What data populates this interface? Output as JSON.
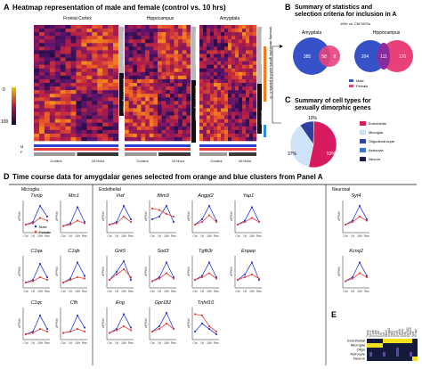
{
  "panel_a": {
    "letter": "A",
    "title": "Heatmap representation of male and female (control vs. 10 hrs)",
    "regions": [
      "Frontal Cortex",
      "Hippocampus",
      "Amygdala"
    ],
    "scale_max": "0",
    "scale_min": "100",
    "sex_labels": [
      "M",
      "F"
    ],
    "conditions": [
      "Control",
      "10 Hour"
    ],
    "cluster_labels": [
      "Increased expression",
      "decreased expression",
      "Increased expression",
      "decreased expression",
      "Increased expression",
      "decrease"
    ],
    "side_label": "sexually dimorphic genes used in panels C, D",
    "colors": {
      "male": "#2a3fd0",
      "female": "#e8413d",
      "hot": "#f2c200",
      "cold": "#1c1464"
    }
  },
  "panel_b": {
    "letter": "B",
    "title": "Summary of statistics and selection criteria for inclusion in A",
    "subtitle": "10Hr vs. Ctrl DEGs",
    "legend": [
      "Male",
      "Female"
    ],
    "venns": [
      {
        "label": "Amygdala",
        "male_only": "385",
        "overlap": "58",
        "female_only": "8"
      },
      {
        "label": "Hippocampus",
        "male_only": "204",
        "overlap": "111",
        "female_only": "170"
      }
    ]
  },
  "panel_c": {
    "letter": "C",
    "title": "Summary of cell types for sexually dimorphic genes",
    "legend": [
      "Endothelial",
      "Microglia",
      "Oligodendrocyte",
      "Astrocyte",
      "Neuron"
    ],
    "label_big": "53%",
    "label_mid": "37%",
    "label_small": "10%"
  },
  "panel_d": {
    "letter": "D",
    "title": "Time course data for amygdalar genes selected from orange and blue clusters from Panel A",
    "groups": [
      "Microglia",
      "Endothelial",
      "Neuronal"
    ],
    "y_label": "dFPKM",
    "x_ticks": [
      "Ctrl",
      "1H",
      "10H",
      "Rec"
    ],
    "legend": [
      "Male",
      "Female"
    ]
  },
  "panel_e": {
    "letter": "E",
    "rows": [
      "Endothelial",
      "Microglia",
      "Oligo",
      "Astrocyte",
      "Neuron"
    ],
    "cols": [
      "Txnip",
      "Mrc1",
      "C1qa",
      "C1qb",
      "C1qc",
      "Cfh",
      "Vwf",
      "Ifitm3",
      "Angpt2",
      "Yap1",
      "Grk5",
      "Sod3",
      "Tgfb3r",
      "Enpep",
      "Eng",
      "Gpr182",
      "Tnfsf10",
      "Syt4",
      "Kcnq2"
    ]
  },
  "chart_data": {
    "type": "line",
    "x": [
      "Ctrl",
      "1H",
      "10H",
      "Rec"
    ],
    "ylabel": "dFPKM",
    "panels": [
      {
        "gene": "Txnip",
        "group": "Microglia",
        "series": [
          {
            "name": "Male",
            "values": [
              0.2,
              0.3,
              0.9,
              0.5
            ]
          },
          {
            "name": "Female",
            "values": [
              0.2,
              0.25,
              0.45,
              0.35
            ]
          }
        ]
      },
      {
        "gene": "Mrc1",
        "group": "Microglia",
        "series": [
          {
            "name": "Male",
            "values": [
              0.15,
              0.25,
              0.85,
              0.3
            ]
          },
          {
            "name": "Female",
            "values": [
              0.15,
              0.2,
              0.35,
              0.25
            ]
          }
        ]
      },
      {
        "gene": "C1qa",
        "group": "Microglia",
        "series": [
          {
            "name": "Male",
            "values": [
              0.1,
              0.2,
              0.8,
              0.3
            ]
          },
          {
            "name": "Female",
            "values": [
              0.1,
              0.15,
              0.3,
              0.2
            ]
          }
        ]
      },
      {
        "gene": "C1qb",
        "group": "Microglia",
        "series": [
          {
            "name": "Male",
            "values": [
              0.1,
              0.25,
              0.85,
              0.35
            ]
          },
          {
            "name": "Female",
            "values": [
              0.1,
              0.2,
              0.3,
              0.25
            ]
          }
        ]
      },
      {
        "gene": "C1qc",
        "group": "Microglia",
        "series": [
          {
            "name": "Male",
            "values": [
              0.1,
              0.2,
              0.8,
              0.3
            ]
          },
          {
            "name": "Female",
            "values": [
              0.1,
              0.15,
              0.3,
              0.2
            ]
          }
        ]
      },
      {
        "gene": "Cfh",
        "group": "Microglia",
        "series": [
          {
            "name": "Male",
            "values": [
              0.15,
              0.2,
              0.8,
              0.35
            ]
          },
          {
            "name": "Female",
            "values": [
              0.15,
              0.2,
              0.3,
              0.2
            ]
          }
        ]
      },
      {
        "gene": "Vwf",
        "group": "Endothelial",
        "series": [
          {
            "name": "Male",
            "values": [
              0.2,
              0.3,
              0.9,
              0.4
            ]
          },
          {
            "name": "Female",
            "values": [
              0.2,
              0.25,
              0.5,
              0.3
            ]
          }
        ]
      },
      {
        "gene": "Ifitm3",
        "group": "Endothelial",
        "series": [
          {
            "name": "Male",
            "values": [
              0.4,
              0.5,
              0.9,
              0.3
            ]
          },
          {
            "name": "Female",
            "values": [
              0.8,
              0.75,
              0.6,
              0.5
            ]
          }
        ]
      },
      {
        "gene": "Angpt2",
        "group": "Endothelial",
        "series": [
          {
            "name": "Male",
            "values": [
              0.2,
              0.4,
              0.9,
              0.35
            ]
          },
          {
            "name": "Female",
            "values": [
              0.2,
              0.3,
              0.55,
              0.3
            ]
          }
        ]
      },
      {
        "gene": "Yap1",
        "group": "Endothelial",
        "series": [
          {
            "name": "Male",
            "values": [
              0.2,
              0.35,
              0.85,
              0.3
            ]
          },
          {
            "name": "Female",
            "values": [
              0.2,
              0.3,
              0.45,
              0.3
            ]
          }
        ]
      },
      {
        "gene": "Grk5",
        "group": "Endothelial",
        "series": [
          {
            "name": "Male",
            "values": [
              0.2,
              0.5,
              0.9,
              0.2
            ]
          },
          {
            "name": "Female",
            "values": [
              0.2,
              0.4,
              0.6,
              0.3
            ]
          }
        ]
      },
      {
        "gene": "Sod3",
        "group": "Endothelial",
        "series": [
          {
            "name": "Male",
            "values": [
              0.15,
              0.3,
              0.85,
              0.3
            ]
          },
          {
            "name": "Female",
            "values": [
              0.15,
              0.25,
              0.45,
              0.25
            ]
          }
        ]
      },
      {
        "gene": "Tgfb3r",
        "group": "Endothelial",
        "series": [
          {
            "name": "Male",
            "values": [
              0.2,
              0.35,
              0.85,
              0.3
            ]
          },
          {
            "name": "Female",
            "values": [
              0.2,
              0.3,
              0.45,
              0.25
            ]
          }
        ]
      },
      {
        "gene": "Enpep",
        "group": "Endothelial",
        "series": [
          {
            "name": "Male",
            "values": [
              0.2,
              0.4,
              0.85,
              0.2
            ]
          },
          {
            "name": "Female",
            "values": [
              0.2,
              0.3,
              0.4,
              0.25
            ]
          }
        ]
      },
      {
        "gene": "Eng",
        "group": "Endothelial",
        "series": [
          {
            "name": "Male",
            "values": [
              0.15,
              0.3,
              0.85,
              0.35
            ]
          },
          {
            "name": "Female",
            "values": [
              0.15,
              0.25,
              0.4,
              0.25
            ]
          }
        ]
      },
      {
        "gene": "Gpr182",
        "group": "Endothelial",
        "series": [
          {
            "name": "Male",
            "values": [
              0.2,
              0.4,
              0.9,
              0.3
            ]
          },
          {
            "name": "Female",
            "values": [
              0.2,
              0.3,
              0.5,
              0.3
            ]
          }
        ]
      },
      {
        "gene": "Tnfsf10",
        "group": "Endothelial",
        "series": [
          {
            "name": "Male",
            "values": [
              0.2,
              0.5,
              0.3,
              0.1
            ]
          },
          {
            "name": "Female",
            "values": [
              0.85,
              0.8,
              0.4,
              0.2
            ]
          }
        ]
      },
      {
        "gene": "Syt4",
        "group": "Neuronal",
        "series": [
          {
            "name": "Male",
            "values": [
              0.2,
              0.35,
              0.9,
              0.4
            ]
          },
          {
            "name": "Female",
            "values": [
              0.2,
              0.3,
              0.5,
              0.35
            ]
          }
        ]
      },
      {
        "gene": "Kcnq2",
        "group": "Neuronal",
        "series": [
          {
            "name": "Male",
            "values": [
              0.15,
              0.3,
              0.85,
              0.35
            ]
          },
          {
            "name": "Female",
            "values": [
              0.15,
              0.25,
              0.45,
              0.3
            ]
          }
        ]
      }
    ]
  }
}
